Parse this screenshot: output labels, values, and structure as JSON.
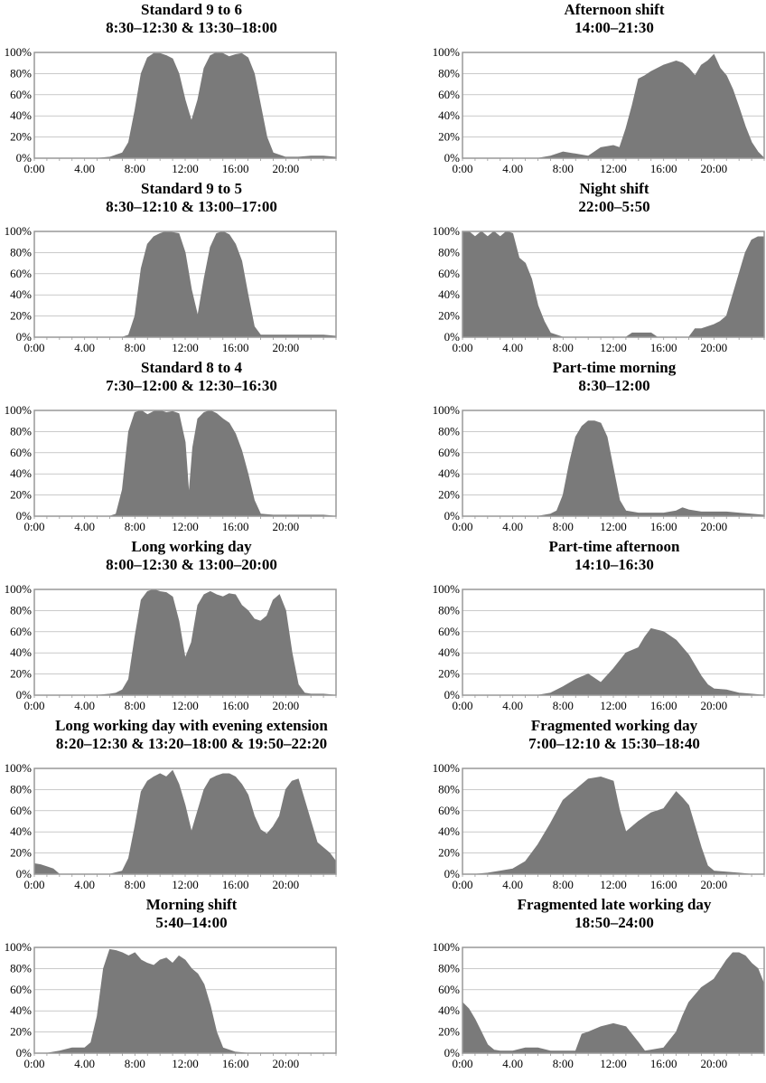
{
  "figure": {
    "colors": {
      "fill": "#7a7a7a",
      "grid": "#aaaaaa",
      "frame": "#999999"
    }
  },
  "chart_data": [
    {
      "type": "area",
      "title": "Standard 9 to 6",
      "subtitle": "8:30–12:30 & 13:30–18:00",
      "x_ticks": [
        "0:00",
        "4.00",
        "8:00",
        "12:00",
        "16:00",
        "20:00"
      ],
      "y_ticks": [
        "0%",
        "20%",
        "40%",
        "60%",
        "80%",
        "100%"
      ],
      "xlim": [
        0,
        24
      ],
      "ylim": [
        0,
        100
      ],
      "x": [
        0,
        1,
        2,
        3,
        4,
        5,
        6,
        7,
        7.5,
        8,
        8.5,
        9,
        9.5,
        10,
        10.5,
        11,
        11.5,
        12,
        12.5,
        13,
        13.5,
        14,
        14.5,
        15,
        15.5,
        16,
        16.5,
        17,
        17.5,
        18,
        18.5,
        19,
        20,
        21,
        22,
        23,
        24
      ],
      "y": [
        0,
        0,
        0,
        0,
        0,
        0,
        1,
        5,
        15,
        45,
        80,
        95,
        99,
        99,
        97,
        94,
        80,
        55,
        35,
        55,
        85,
        97,
        100,
        99,
        96,
        98,
        99,
        95,
        80,
        50,
        20,
        5,
        1,
        1,
        2,
        2,
        1
      ]
    },
    {
      "type": "area",
      "title": "Afternoon shift",
      "subtitle": "14:00–21:30",
      "x_ticks": [
        "0:00",
        "4.00",
        "8:00",
        "12:00",
        "16:00",
        "20:00"
      ],
      "y_ticks": [
        "0%",
        "20%",
        "40%",
        "60%",
        "80%",
        "100%"
      ],
      "xlim": [
        0,
        24
      ],
      "ylim": [
        0,
        100
      ],
      "x": [
        0,
        1,
        2,
        3,
        4,
        5,
        6,
        7,
        8,
        9,
        10,
        11,
        12,
        12.5,
        13,
        13.5,
        14,
        14.5,
        15,
        16,
        17,
        17.5,
        18,
        18.5,
        19,
        19.5,
        20,
        20.5,
        21,
        21.5,
        22,
        22.5,
        23,
        23.5,
        24
      ],
      "y": [
        0,
        0,
        0,
        0,
        0,
        0,
        0,
        2,
        6,
        4,
        2,
        10,
        12,
        10,
        28,
        50,
        75,
        78,
        82,
        88,
        92,
        90,
        85,
        78,
        88,
        92,
        98,
        85,
        78,
        65,
        48,
        30,
        15,
        6,
        0
      ]
    },
    {
      "type": "area",
      "title": "Standard 9 to 5",
      "subtitle": "8:30–12:10 & 13:00–17:00",
      "x_ticks": [
        "0:00",
        "4.00",
        "8:00",
        "12:00",
        "16:00",
        "20:00"
      ],
      "y_ticks": [
        "0%",
        "20%",
        "40%",
        "60%",
        "80%",
        "100%"
      ],
      "xlim": [
        0,
        24
      ],
      "ylim": [
        0,
        100
      ],
      "x": [
        0,
        1,
        2,
        3,
        4,
        5,
        6,
        7,
        7.5,
        8,
        8.5,
        9,
        9.5,
        10,
        10.5,
        11,
        11.5,
        12,
        12.5,
        13,
        13.5,
        14,
        14.5,
        15,
        15.5,
        16,
        16.5,
        17,
        17.5,
        18,
        19,
        20,
        21,
        22,
        23,
        24
      ],
      "y": [
        0,
        0,
        0,
        0,
        0,
        0,
        0,
        0,
        2,
        20,
        65,
        88,
        95,
        98,
        100,
        99,
        98,
        80,
        45,
        20,
        55,
        85,
        98,
        100,
        97,
        88,
        72,
        40,
        10,
        2,
        2,
        2,
        2,
        2,
        2,
        1
      ]
    },
    {
      "type": "area",
      "title": "Night shift",
      "subtitle": "22:00–5:50",
      "x_ticks": [
        "0:00",
        "4.00",
        "8:00",
        "12:00",
        "16:00",
        "20:00"
      ],
      "y_ticks": [
        "0%",
        "20%",
        "40%",
        "60%",
        "80%",
        "100%"
      ],
      "xlim": [
        0,
        24
      ],
      "ylim": [
        0,
        100
      ],
      "x": [
        0,
        0.5,
        1,
        1.5,
        2,
        2.5,
        3,
        3.5,
        4,
        4.5,
        5,
        5.5,
        6,
        6.5,
        7,
        8,
        9,
        10,
        11,
        12,
        13,
        13.5,
        14,
        15,
        15.5,
        16,
        17,
        18,
        18.5,
        19,
        20,
        20.5,
        21,
        21.5,
        22,
        22.5,
        23,
        23.5,
        24
      ],
      "y": [
        100,
        100,
        95,
        100,
        95,
        100,
        95,
        100,
        98,
        75,
        70,
        55,
        30,
        15,
        4,
        0,
        0,
        0,
        0,
        0,
        0,
        4,
        4,
        4,
        0,
        0,
        0,
        0,
        8,
        8,
        12,
        15,
        20,
        40,
        60,
        80,
        92,
        95,
        95
      ]
    },
    {
      "type": "area",
      "title": "Standard 8 to 4",
      "subtitle": "7:30–12:00 & 12:30–16:30",
      "x_ticks": [
        "0:00",
        "4.00",
        "8:00",
        "12:00",
        "16:00",
        "20:00"
      ],
      "y_ticks": [
        "0%",
        "20%",
        "40%",
        "60%",
        "80%",
        "100%"
      ],
      "xlim": [
        0,
        24
      ],
      "ylim": [
        0,
        100
      ],
      "x": [
        0,
        1,
        2,
        3,
        4,
        5,
        6,
        6.5,
        7,
        7.5,
        8,
        8.5,
        9,
        9.5,
        10,
        10.5,
        11,
        11.5,
        12,
        12.3,
        12.6,
        13,
        13.5,
        14,
        14.5,
        15,
        15.5,
        16,
        16.5,
        17,
        17.5,
        18,
        19,
        20,
        21,
        22,
        23,
        24
      ],
      "y": [
        0,
        0,
        0,
        0,
        0,
        0,
        0,
        2,
        25,
        80,
        98,
        100,
        96,
        99,
        100,
        98,
        99,
        97,
        70,
        20,
        65,
        92,
        98,
        100,
        97,
        92,
        88,
        78,
        62,
        40,
        15,
        2,
        1,
        1,
        1,
        1,
        1,
        0
      ]
    },
    {
      "type": "area",
      "title": "Part-time morning",
      "subtitle": "8:30–12:00",
      "x_ticks": [
        "0:00",
        "4.00",
        "8:00",
        "12:00",
        "16:00",
        "20:00"
      ],
      "y_ticks": [
        "0%",
        "20%",
        "40%",
        "60%",
        "80%",
        "100%"
      ],
      "xlim": [
        0,
        24
      ],
      "ylim": [
        0,
        100
      ],
      "x": [
        0,
        1,
        2,
        3,
        4,
        5,
        6,
        7,
        7.5,
        8,
        8.5,
        9,
        9.5,
        10,
        10.5,
        11,
        11.5,
        12,
        12.5,
        13,
        14,
        15,
        16,
        17,
        17.5,
        18,
        19,
        20,
        21,
        22,
        23,
        24
      ],
      "y": [
        0,
        0,
        0,
        0,
        0,
        0,
        0,
        2,
        5,
        20,
        50,
        75,
        85,
        90,
        90,
        88,
        75,
        45,
        15,
        5,
        3,
        3,
        3,
        5,
        8,
        6,
        4,
        4,
        4,
        3,
        2,
        1
      ]
    },
    {
      "type": "area",
      "title": "Long working day",
      "subtitle": "8:00–12:30 & 13:00–20:00",
      "x_ticks": [
        "0:00",
        "4.00",
        "8:00",
        "12:00",
        "16:00",
        "20:00"
      ],
      "y_ticks": [
        "0%",
        "20%",
        "40%",
        "60%",
        "80%",
        "100%"
      ],
      "xlim": [
        0,
        24
      ],
      "ylim": [
        0,
        100
      ],
      "x": [
        0,
        1,
        2,
        3,
        4,
        5,
        6,
        6.5,
        7,
        7.5,
        8,
        8.5,
        9,
        9.5,
        10,
        10.5,
        11,
        11.5,
        12,
        12.5,
        13,
        13.5,
        14,
        14.5,
        15,
        15.5,
        16,
        16.5,
        17,
        17.5,
        18,
        18.5,
        19,
        19.5,
        20,
        20.5,
        21,
        21.5,
        22,
        23,
        24
      ],
      "y": [
        0,
        0,
        0,
        0,
        0,
        0,
        1,
        2,
        5,
        15,
        55,
        90,
        98,
        100,
        98,
        97,
        93,
        70,
        35,
        50,
        85,
        95,
        98,
        95,
        93,
        96,
        95,
        85,
        80,
        72,
        70,
        75,
        90,
        95,
        80,
        40,
        10,
        2,
        1,
        1,
        0
      ]
    },
    {
      "type": "area",
      "title": "Part-time afternoon",
      "subtitle": "14:10–16:30",
      "x_ticks": [
        "0:00",
        "4.00",
        "8:00",
        "12:00",
        "16:00",
        "20:00"
      ],
      "y_ticks": [
        "0%",
        "20%",
        "40%",
        "60%",
        "80%",
        "100%"
      ],
      "xlim": [
        0,
        24
      ],
      "ylim": [
        0,
        100
      ],
      "x": [
        0,
        1,
        2,
        3,
        4,
        5,
        6,
        7,
        8,
        9,
        10,
        11,
        12,
        13,
        14,
        14.5,
        15,
        16,
        17,
        18,
        19,
        19.5,
        20,
        21,
        22,
        23,
        24
      ],
      "y": [
        0,
        0,
        0,
        0,
        0,
        0,
        0,
        2,
        8,
        15,
        20,
        12,
        25,
        40,
        45,
        55,
        63,
        60,
        52,
        38,
        18,
        10,
        6,
        5,
        2,
        1,
        0
      ]
    },
    {
      "type": "area",
      "title": "Long working day with evening extension",
      "subtitle": "8:20–12:30 & 13:20–18:00 & 19:50–22:20",
      "x_ticks": [
        "0:00",
        "4.00",
        "8:00",
        "12:00",
        "16:00",
        "20:00"
      ],
      "y_ticks": [
        "0%",
        "20%",
        "40%",
        "60%",
        "80%",
        "100%"
      ],
      "xlim": [
        0,
        24
      ],
      "ylim": [
        0,
        100
      ],
      "x": [
        0,
        0.5,
        1,
        1.5,
        2,
        3,
        4,
        5,
        6,
        7,
        7.5,
        8,
        8.5,
        9,
        9.5,
        10,
        10.5,
        11,
        11.5,
        12,
        12.5,
        13,
        13.5,
        14,
        14.5,
        15,
        15.5,
        16,
        16.5,
        17,
        17.5,
        18,
        18.5,
        19,
        19.5,
        20,
        20.5,
        21,
        21.5,
        22,
        22.5,
        23,
        23.5,
        24
      ],
      "y": [
        10,
        9,
        7,
        5,
        0,
        0,
        0,
        0,
        0,
        3,
        15,
        45,
        78,
        88,
        92,
        95,
        92,
        98,
        85,
        65,
        40,
        60,
        80,
        90,
        93,
        95,
        95,
        92,
        85,
        75,
        55,
        42,
        38,
        45,
        55,
        80,
        88,
        90,
        70,
        50,
        30,
        25,
        20,
        12
      ]
    },
    {
      "type": "area",
      "title": "Fragmented working day",
      "subtitle": "7:00–12:10 & 15:30–18:40",
      "x_ticks": [
        "0:00",
        "4.00",
        "8:00",
        "12:00",
        "16:00",
        "20:00"
      ],
      "y_ticks": [
        "0%",
        "20%",
        "40%",
        "60%",
        "80%",
        "100%"
      ],
      "xlim": [
        0,
        24
      ],
      "ylim": [
        0,
        100
      ],
      "x": [
        0,
        1,
        2,
        3,
        4,
        5,
        6,
        7,
        8,
        9,
        10,
        11,
        12,
        12.5,
        13,
        14,
        15,
        16,
        17,
        17.5,
        18,
        18.5,
        19,
        19.5,
        20,
        21,
        22,
        23,
        24
      ],
      "y": [
        0,
        0,
        1,
        3,
        5,
        12,
        28,
        48,
        70,
        80,
        90,
        92,
        88,
        60,
        40,
        50,
        58,
        62,
        78,
        72,
        65,
        45,
        25,
        8,
        3,
        2,
        1,
        0,
        0
      ]
    },
    {
      "type": "area",
      "title": "Morning shift",
      "subtitle": "5:40–14:00",
      "x_ticks": [
        "0:00",
        "4.00",
        "8:00",
        "12:00",
        "16:00",
        "20:00"
      ],
      "y_ticks": [
        "0%",
        "20%",
        "40%",
        "60%",
        "80%",
        "100%"
      ],
      "xlim": [
        0,
        24
      ],
      "ylim": [
        0,
        100
      ],
      "x": [
        0,
        1,
        2,
        3,
        4,
        4.5,
        5,
        5.5,
        6,
        6.5,
        7,
        7.5,
        8,
        8.5,
        9,
        9.5,
        10,
        10.5,
        11,
        11.5,
        12,
        12.5,
        13,
        13.5,
        14,
        14.5,
        15,
        16,
        17,
        18,
        19,
        20,
        21,
        22,
        23,
        24
      ],
      "y": [
        0,
        0,
        2,
        5,
        5,
        10,
        35,
        80,
        98,
        97,
        95,
        92,
        95,
        88,
        85,
        83,
        88,
        90,
        85,
        92,
        88,
        80,
        75,
        65,
        45,
        20,
        5,
        1,
        0,
        0,
        0,
        0,
        0,
        0,
        0,
        0
      ]
    },
    {
      "type": "area",
      "title": "Fragmented late working day",
      "subtitle": "18:50–24:00",
      "x_ticks": [
        "0:00",
        "4.00",
        "8:00",
        "12:00",
        "16:00",
        "20:00"
      ],
      "y_ticks": [
        "0%",
        "20%",
        "40%",
        "60%",
        "80%",
        "100%"
      ],
      "xlim": [
        0,
        24
      ],
      "ylim": [
        0,
        100
      ],
      "x": [
        0,
        0.5,
        1,
        1.5,
        2,
        2.5,
        3,
        4,
        5,
        6,
        7,
        8,
        9,
        9.5,
        10,
        11,
        12,
        13,
        14,
        14.5,
        15,
        16,
        17,
        17.5,
        18,
        18.5,
        19,
        20,
        21,
        21.5,
        22,
        22.5,
        23,
        23.5,
        24
      ],
      "y": [
        48,
        42,
        32,
        20,
        8,
        3,
        2,
        2,
        5,
        5,
        2,
        2,
        2,
        18,
        20,
        25,
        28,
        25,
        10,
        2,
        3,
        5,
        20,
        35,
        48,
        55,
        62,
        70,
        88,
        95,
        95,
        92,
        85,
        80,
        65
      ]
    }
  ]
}
